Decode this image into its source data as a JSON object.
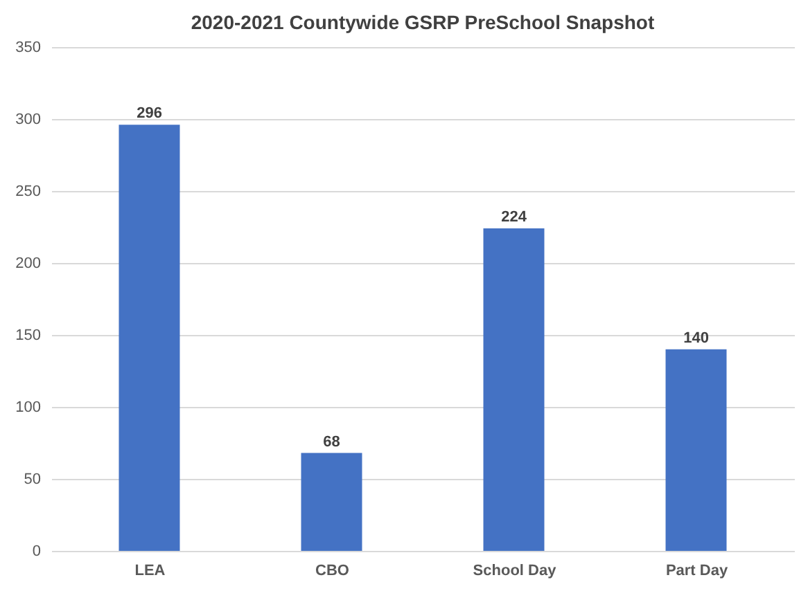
{
  "chart_data": {
    "type": "bar",
    "title": "2020-2021 Countywide GSRP PreSchool Snapshot",
    "categories": [
      "LEA",
      "CBO",
      "School Day",
      "Part Day"
    ],
    "values": [
      296,
      68,
      224,
      140
    ],
    "color": "#4472c4",
    "ylim": [
      0,
      350
    ],
    "yticks": [
      0,
      50,
      100,
      150,
      200,
      250,
      300,
      350
    ],
    "grid": "y",
    "data_labels": true
  }
}
